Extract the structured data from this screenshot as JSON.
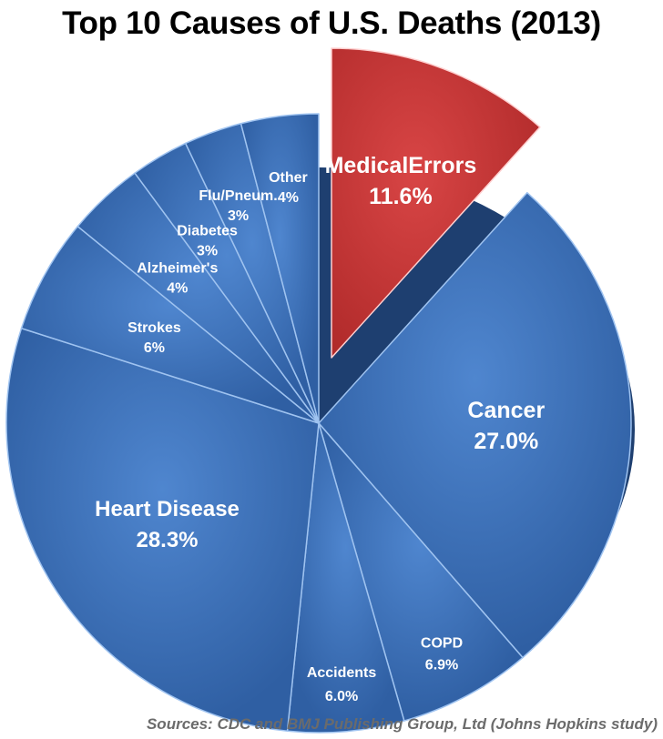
{
  "chart_data": {
    "type": "pie",
    "title": "Top 10 Causes of U.S. Deaths (2013)",
    "source": "Sources: CDC and BMJ Publishing Group, Ltd (Johns Hopkins study)",
    "exploded": "Medical Errors",
    "slices": [
      {
        "name": "MedicalErrors",
        "value_label": "11.6%",
        "value": 11.6,
        "color": "#c83737"
      },
      {
        "name": "Cancer",
        "value_label": "27.0%",
        "value": 27.0,
        "color": "#3a6db5"
      },
      {
        "name": "COPD",
        "value_label": "6.9%",
        "value": 6.9,
        "color": "#3a6db5"
      },
      {
        "name": "Accidents",
        "value_label": "6.0%",
        "value": 6.0,
        "color": "#3a6db5"
      },
      {
        "name": "Heart Disease",
        "value_label": "28.3%",
        "value": 28.3,
        "color": "#3a6db5"
      },
      {
        "name": "Strokes",
        "value_label": "6%",
        "value": 6,
        "color": "#3a6db5"
      },
      {
        "name": "Alzheimer's",
        "value_label": "4%",
        "value": 4,
        "color": "#3a6db5"
      },
      {
        "name": "Diabetes",
        "value_label": "3%",
        "value": 3,
        "color": "#3a6db5"
      },
      {
        "name": "Flu/Pneum.",
        "value_label": "3%",
        "value": 3,
        "color": "#3a6db5"
      },
      {
        "name": "Other",
        "value_label": "4%",
        "value": 4,
        "color": "#3a6db5"
      }
    ]
  }
}
